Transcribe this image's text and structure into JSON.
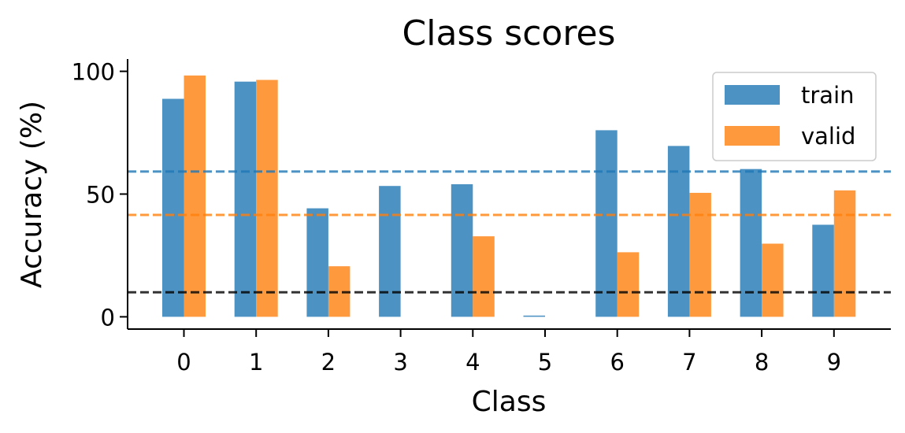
{
  "chart_data": {
    "type": "bar",
    "title": "Class scores",
    "xlabel": "Class",
    "ylabel": "Accuracy (%)",
    "categories": [
      "0",
      "1",
      "2",
      "3",
      "4",
      "5",
      "6",
      "7",
      "8",
      "9"
    ],
    "series": [
      {
        "name": "train",
        "color": "#1f77b4",
        "values": [
          88.8,
          95.8,
          44.2,
          53.3,
          54.0,
          0.5,
          76.0,
          69.6,
          60.2,
          37.5
        ]
      },
      {
        "name": "valid",
        "color": "#ff7f0e",
        "values": [
          98.3,
          96.5,
          20.6,
          0,
          32.8,
          0,
          26.3,
          50.5,
          29.8,
          51.5
        ]
      }
    ],
    "reference_lines": [
      {
        "y": 59.2,
        "color": "#1f77b4",
        "style": "dashed"
      },
      {
        "y": 41.5,
        "color": "#ff7f0e",
        "style": "dashed"
      },
      {
        "y": 10,
        "color": "#000000",
        "style": "dashed"
      }
    ],
    "yticks": [
      0,
      50,
      100
    ],
    "ylim": [
      -5,
      105
    ],
    "legend_position": "top-right",
    "grid": false
  }
}
